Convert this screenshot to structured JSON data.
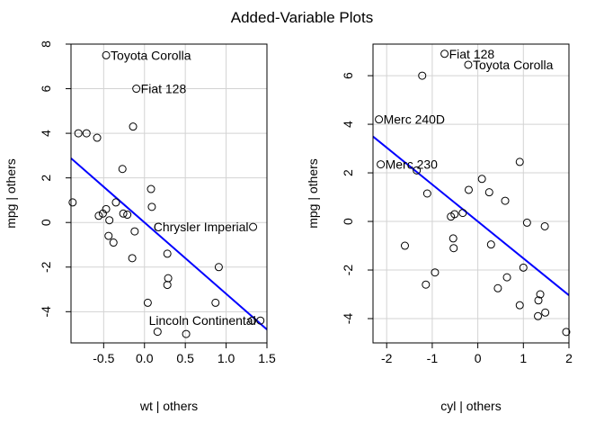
{
  "title": "Added-Variable Plots",
  "chart_data": [
    {
      "type": "scatter",
      "xlabel": "wt | others",
      "ylabel": "mpg | others",
      "xlim": [
        -0.9,
        1.5
      ],
      "ylim": [
        -5.4,
        8.0
      ],
      "xticks": [
        -0.5,
        0.0,
        0.5,
        1.0,
        1.5
      ],
      "xticklabels": [
        "-0.5",
        "0.0",
        "0.5",
        "1.0",
        "1.5"
      ],
      "yticks": [
        -4,
        -2,
        0,
        2,
        4,
        6,
        8
      ],
      "yticklabels": [
        "-4",
        "-2",
        "0",
        "2",
        "4",
        "6",
        "8"
      ],
      "grid": true,
      "fit_line": {
        "slope": -3.2,
        "intercept": 0.0,
        "color": "#0000ff"
      },
      "points": [
        {
          "x": -0.47,
          "y": 7.5,
          "label": "Toyota Corolla"
        },
        {
          "x": -0.1,
          "y": 6.0,
          "label": "Fiat 128"
        },
        {
          "x": -0.81,
          "y": 4.0
        },
        {
          "x": -0.71,
          "y": 4.0
        },
        {
          "x": -0.58,
          "y": 3.8
        },
        {
          "x": -0.14,
          "y": 4.3
        },
        {
          "x": -0.27,
          "y": 2.4
        },
        {
          "x": 0.08,
          "y": 1.5
        },
        {
          "x": -0.88,
          "y": 0.9
        },
        {
          "x": -0.35,
          "y": 0.9
        },
        {
          "x": 0.09,
          "y": 0.7
        },
        {
          "x": -0.47,
          "y": 0.6
        },
        {
          "x": -0.51,
          "y": 0.4
        },
        {
          "x": -0.56,
          "y": 0.3
        },
        {
          "x": -0.26,
          "y": 0.4
        },
        {
          "x": -0.21,
          "y": 0.35
        },
        {
          "x": -0.43,
          "y": 0.1
        },
        {
          "x": -0.12,
          "y": -0.4
        },
        {
          "x": -0.44,
          "y": -0.6
        },
        {
          "x": -0.38,
          "y": -0.9
        },
        {
          "x": -0.15,
          "y": -1.6
        },
        {
          "x": 0.28,
          "y": -1.4
        },
        {
          "x": 0.91,
          "y": -2.0
        },
        {
          "x": 0.29,
          "y": -2.5
        },
        {
          "x": 0.28,
          "y": -2.8
        },
        {
          "x": 0.04,
          "y": -3.6
        },
        {
          "x": 0.87,
          "y": -3.6
        },
        {
          "x": 0.16,
          "y": -4.9
        },
        {
          "x": 0.51,
          "y": -5.0
        },
        {
          "x": 1.33,
          "y": -0.2,
          "label": "Chrysler Imperial"
        },
        {
          "x": 1.32,
          "y": -4.4
        },
        {
          "x": 1.42,
          "y": -4.4,
          "label": "Lincoln Continental"
        }
      ]
    },
    {
      "type": "scatter",
      "xlabel": "cyl | others",
      "ylabel": "mpg | others",
      "xlim": [
        -2.3,
        2.0
      ],
      "ylim": [
        -5.0,
        7.3
      ],
      "xticks": [
        -2,
        -1,
        0,
        1,
        2
      ],
      "xticklabels": [
        "-2",
        "-1",
        "0",
        "1",
        "2"
      ],
      "yticks": [
        -4,
        -2,
        0,
        2,
        4,
        6
      ],
      "yticklabels": [
        "-4",
        "-2",
        "0",
        "2",
        "4",
        "6"
      ],
      "grid": true,
      "fit_line": {
        "slope": -1.52,
        "intercept": 0.0,
        "color": "#0000ff"
      },
      "points": [
        {
          "x": -0.73,
          "y": 6.9,
          "label": "Fiat 128"
        },
        {
          "x": -0.21,
          "y": 6.45,
          "label": "Toyota Corolla"
        },
        {
          "x": -1.22,
          "y": 6.0
        },
        {
          "x": -2.17,
          "y": 4.2,
          "label": "Merc 240D"
        },
        {
          "x": -2.13,
          "y": 2.35,
          "label": "Merc 230"
        },
        {
          "x": 0.92,
          "y": 2.45
        },
        {
          "x": -1.34,
          "y": 2.1
        },
        {
          "x": 0.09,
          "y": 1.75
        },
        {
          "x": -0.2,
          "y": 1.3
        },
        {
          "x": 0.25,
          "y": 1.2
        },
        {
          "x": -1.11,
          "y": 1.15
        },
        {
          "x": 0.6,
          "y": 0.85
        },
        {
          "x": -0.33,
          "y": 0.35
        },
        {
          "x": -0.51,
          "y": 0.3
        },
        {
          "x": -0.59,
          "y": 0.2
        },
        {
          "x": 1.08,
          "y": -0.05
        },
        {
          "x": 1.47,
          "y": -0.2
        },
        {
          "x": -0.54,
          "y": -0.7
        },
        {
          "x": -0.53,
          "y": -1.1
        },
        {
          "x": -1.6,
          "y": -1.0
        },
        {
          "x": 0.29,
          "y": -0.95
        },
        {
          "x": 1.0,
          "y": -1.9
        },
        {
          "x": -0.94,
          "y": -2.1
        },
        {
          "x": 0.64,
          "y": -2.3
        },
        {
          "x": -1.14,
          "y": -2.6
        },
        {
          "x": 0.44,
          "y": -2.75
        },
        {
          "x": 1.37,
          "y": -3.0
        },
        {
          "x": 1.33,
          "y": -3.25
        },
        {
          "x": 0.92,
          "y": -3.45
        },
        {
          "x": 1.48,
          "y": -3.75
        },
        {
          "x": 1.32,
          "y": -3.9
        },
        {
          "x": 1.94,
          "y": -4.55
        }
      ]
    }
  ]
}
